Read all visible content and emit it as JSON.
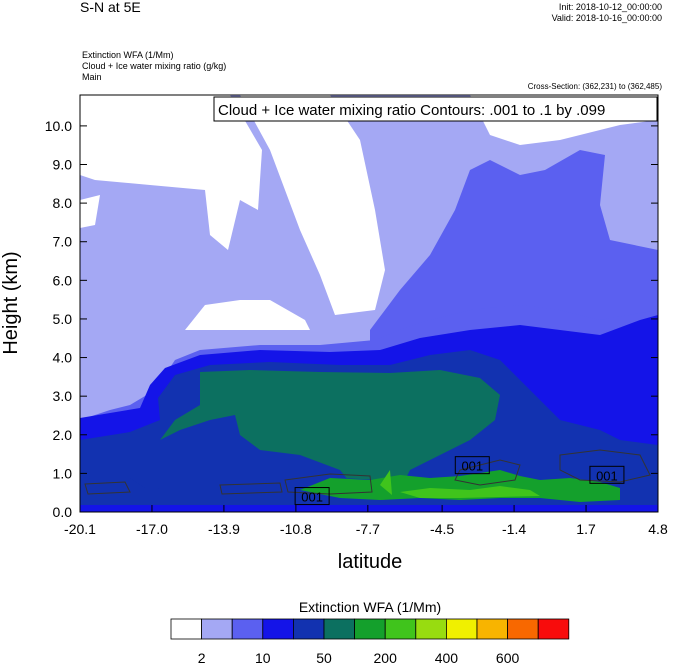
{
  "header": {
    "title": "S-N at 5E",
    "init": "Init: 2018-10-12_00:00:00",
    "valid": "Valid: 2018-10-16_00:00:00",
    "field1": "Extinction WFA   (1/Mm)",
    "field2": "Cloud + Ice water mixing ratio   (g/kg)",
    "field3": "Main",
    "cross_section": "Cross-Section: (362,231) to (362,485)"
  },
  "chart_data": {
    "type": "heatmap",
    "contour_label": "Cloud + Ice water mixing ratio Contours: .001 to .1 by .099",
    "xlabel": "latitude",
    "ylabel": "Height (km)",
    "xlim": [
      -20.1,
      4.8
    ],
    "ylim": [
      0.0,
      10.8
    ],
    "x_ticks": [
      "-20.1",
      "-17.0",
      "-13.9",
      "-10.8",
      "-7.7",
      "-4.5",
      "-1.4",
      "1.7",
      "4.8"
    ],
    "y_ticks": [
      "0.0",
      "1.0",
      "2.0",
      "3.0",
      "4.0",
      "5.0",
      "6.0",
      "7.0",
      "8.0",
      "9.0",
      "10.0"
    ],
    "contour_labels": [
      {
        "text": "001",
        "lat": -10.1,
        "h": 0.4
      },
      {
        "text": "001",
        "lat": -3.2,
        "h": 1.2
      },
      {
        "text": "001",
        "lat": 2.6,
        "h": 0.95
      }
    ],
    "colorbar": {
      "title": "Extinction WFA  (1/Mm)",
      "colors": [
        "#ffffff",
        "#a4a8f4",
        "#5b60f0",
        "#1414e8",
        "#1232b0",
        "#0c7060",
        "#14a02c",
        "#40c41c",
        "#98dc10",
        "#f0f000",
        "#f8b400",
        "#f86800",
        "#f80c0c"
      ],
      "labels": [
        "2",
        "10",
        "50",
        "200",
        "400",
        "600"
      ]
    }
  }
}
